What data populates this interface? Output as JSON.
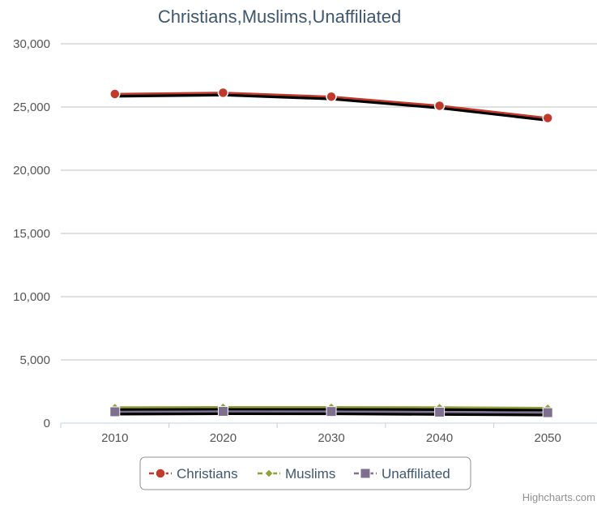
{
  "chart_data": {
    "type": "line",
    "title": "Christians,Muslims,Unaffiliated",
    "subtitle": "",
    "xlabel": "",
    "ylabel": "",
    "categories": [
      "2010",
      "2020",
      "2030",
      "2040",
      "2050"
    ],
    "ylim": [
      0,
      30000
    ],
    "yticks": [
      0,
      5000,
      10000,
      15000,
      20000,
      25000,
      30000
    ],
    "ytick_labels": [
      "0",
      "5,000",
      "10,000",
      "15,000",
      "20,000",
      "25,000",
      "30,000"
    ],
    "grid": true,
    "legend_position": "bottom-center",
    "series": [
      {
        "name": "Christians",
        "values": [
          26030,
          26130,
          25820,
          25100,
          24130
        ],
        "color": "#c0392b",
        "marker": "circle"
      },
      {
        "name": "Muslims",
        "values": [
          1250,
          1270,
          1270,
          1250,
          1200
        ],
        "color": "#8fa03a",
        "marker": "diamond"
      },
      {
        "name": "Unaffiliated",
        "values": [
          900,
          930,
          920,
          870,
          830
        ],
        "color": "#7f6f8f",
        "marker": "square"
      }
    ]
  },
  "credit": "Highcharts.com"
}
